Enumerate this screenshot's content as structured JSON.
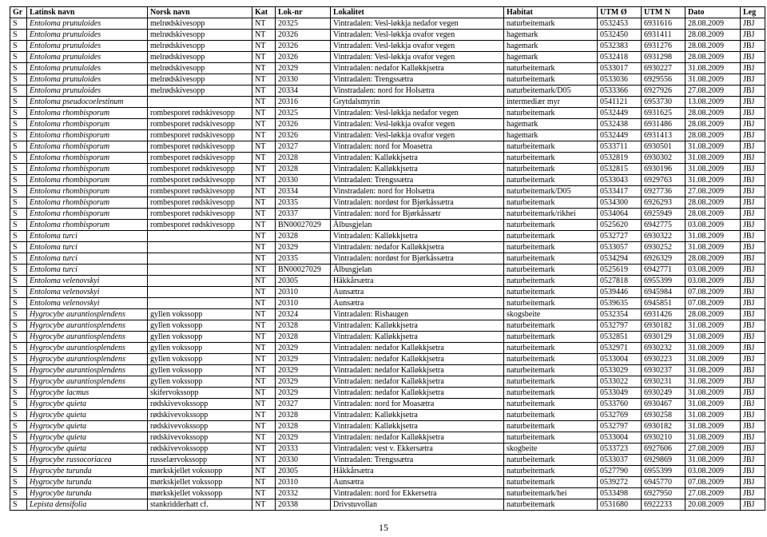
{
  "page_number": "15",
  "columns": [
    {
      "key": "gr",
      "label": "Gr",
      "class": "col-gr"
    },
    {
      "key": "lat",
      "label": "Latinsk navn",
      "class": "col-lat"
    },
    {
      "key": "nor",
      "label": "Norsk navn",
      "class": "col-nor"
    },
    {
      "key": "kat",
      "label": "Kat",
      "class": "col-kat"
    },
    {
      "key": "lok",
      "label": "Lok-nr",
      "class": "col-lok"
    },
    {
      "key": "loka",
      "label": "Lokalitet",
      "class": "col-loka"
    },
    {
      "key": "hab",
      "label": "Habitat",
      "class": "col-hab"
    },
    {
      "key": "utmo",
      "label": "UTM Ø",
      "class": "col-utmo"
    },
    {
      "key": "utmn",
      "label": "UTM N",
      "class": "col-utmn"
    },
    {
      "key": "dato",
      "label": "Dato",
      "class": "col-dato"
    },
    {
      "key": "leg",
      "label": "Leg",
      "class": "col-leg"
    }
  ],
  "rows": [
    {
      "gr": "S",
      "lat": "Entoloma prunuloides",
      "nor": "melrødskivesopp",
      "kat": "NT",
      "lok": "20325",
      "loka": "Vintradalen: Vesl-løkkja nedafor vegen",
      "hab": "naturbeitemark",
      "utmo": "0532453",
      "utmn": "6931616",
      "dato": "28.08.2009",
      "leg": "JBJ"
    },
    {
      "gr": "S",
      "lat": "Entoloma prunuloides",
      "nor": "melrødskivesopp",
      "kat": "NT",
      "lok": "20326",
      "loka": "Vintradalen: Vesl-løkkja ovafor vegen",
      "hab": "hagemark",
      "utmo": "0532450",
      "utmn": "6931411",
      "dato": "28.08.2009",
      "leg": "JBJ"
    },
    {
      "gr": "S",
      "lat": "Entoloma prunuloides",
      "nor": "melrødskivesopp",
      "kat": "NT",
      "lok": "20326",
      "loka": "Vintradalen: Vesl-løkkja ovafor vegen",
      "hab": "hagemark",
      "utmo": "0532383",
      "utmn": "6931276",
      "dato": "28.08.2009",
      "leg": "JBJ"
    },
    {
      "gr": "S",
      "lat": "Entoloma prunuloides",
      "nor": "melrødskivesopp",
      "kat": "NT",
      "lok": "20326",
      "loka": "Vintradalen: Vesl-løkkja ovafor vegen",
      "hab": "hagemark",
      "utmo": "0532418",
      "utmn": "6931298",
      "dato": "28.08.2009",
      "leg": "JBJ"
    },
    {
      "gr": "S",
      "lat": "Entoloma prunuloides",
      "nor": "melrødskivesopp",
      "kat": "NT",
      "lok": "20329",
      "loka": "Vintradalen: nedafor Kalløkkjsetra",
      "hab": "naturbeitemark",
      "utmo": "0533017",
      "utmn": "6930227",
      "dato": "31.08.2009",
      "leg": "JBJ"
    },
    {
      "gr": "S",
      "lat": "Entoloma prunuloides",
      "nor": "melrødskivesopp",
      "kat": "NT",
      "lok": "20330",
      "loka": "Vintradalen: Trengssætra",
      "hab": "naturbeitemark",
      "utmo": "0533036",
      "utmn": "6929556",
      "dato": "31.08.2009",
      "leg": "JBJ"
    },
    {
      "gr": "S",
      "lat": "Entoloma prunuloides",
      "nor": "melrødskivesopp",
      "kat": "NT",
      "lok": "20334",
      "loka": "Vinstradalen: nord for Holsætra",
      "hab": "naturbeitemark/D05",
      "utmo": "0533366",
      "utmn": "6927926",
      "dato": "27.08.2009",
      "leg": "JBJ"
    },
    {
      "gr": "S",
      "lat": "Entoloma pseudocoelestinum",
      "nor": "",
      "kat": "NT",
      "lok": "20316",
      "loka": "Grytdalsmyrin",
      "hab": "intermediær myr",
      "utmo": "0541121",
      "utmn": "6953730",
      "dato": "13.08.2009",
      "leg": "JBJ"
    },
    {
      "gr": "S",
      "lat": "Entoloma rhombisporum",
      "nor": "rombesporet rødskivesopp",
      "kat": "NT",
      "lok": "20325",
      "loka": "Vintradalen: Vesl-løkkja nedafor vegen",
      "hab": "naturbeitemark",
      "utmo": "0532449",
      "utmn": "6931625",
      "dato": "28.08.2009",
      "leg": "JBJ"
    },
    {
      "gr": "S",
      "lat": "Entoloma rhombisporum",
      "nor": "rombesporet rødskivesopp",
      "kat": "NT",
      "lok": "20326",
      "loka": "Vintradalen: Vesl-løkkja ovafor vegen",
      "hab": "hagemark",
      "utmo": "0532438",
      "utmn": "6931486",
      "dato": "28.08.2009",
      "leg": "JBJ"
    },
    {
      "gr": "S",
      "lat": "Entoloma rhombisporum",
      "nor": "rombesporet rødskivesopp",
      "kat": "NT",
      "lok": "20326",
      "loka": "Vintradalen: Vesl-løkkja ovafor vegen",
      "hab": "hagemark",
      "utmo": "0532449",
      "utmn": "6931413",
      "dato": "28.08.2009",
      "leg": "JBJ"
    },
    {
      "gr": "S",
      "lat": "Entoloma rhombisporum",
      "nor": "rombesporet rødskivesopp",
      "kat": "NT",
      "lok": "20327",
      "loka": "Vintradalen: nord for Moasetra",
      "hab": "naturbeitemark",
      "utmo": "0533711",
      "utmn": "6930501",
      "dato": "31.08.2009",
      "leg": "JBJ"
    },
    {
      "gr": "S",
      "lat": "Entoloma rhombisporum",
      "nor": "rombesporet rødskivesopp",
      "kat": "NT",
      "lok": "20328",
      "loka": "Vintradalen: Kalløkkjsetra",
      "hab": "naturbeitemark",
      "utmo": "0532819",
      "utmn": "6930302",
      "dato": "31.08.2009",
      "leg": "JBJ"
    },
    {
      "gr": "S",
      "lat": "Entoloma rhombisporum",
      "nor": "rombesporet rødskivesopp",
      "kat": "NT",
      "lok": "20328",
      "loka": "Vintradalen: Kalløkkjsetra",
      "hab": "naturbeitemark",
      "utmo": "0532815",
      "utmn": "6930196",
      "dato": "31.08.2009",
      "leg": "JBJ"
    },
    {
      "gr": "S",
      "lat": "Entoloma rhombisporum",
      "nor": "rombesporet rødskivesopp",
      "kat": "NT",
      "lok": "20330",
      "loka": "Vintradalen: Trengssætra",
      "hab": "naturbeitemark",
      "utmo": "0533043",
      "utmn": "6929763",
      "dato": "31.08.2009",
      "leg": "JBJ"
    },
    {
      "gr": "S",
      "lat": "Entoloma rhombisporum",
      "nor": "rombesporet rødskivesopp",
      "kat": "NT",
      "lok": "20334",
      "loka": "Vinstradalen: nord for Holsætra",
      "hab": "naturbeitemark/D05",
      "utmo": "0533417",
      "utmn": "6927736",
      "dato": "27.08.2009",
      "leg": "JBJ"
    },
    {
      "gr": "S",
      "lat": "Entoloma rhombisporum",
      "nor": "rombesporet rødskivesopp",
      "kat": "NT",
      "lok": "20335",
      "loka": "Vintradalen: nordøst for Bjørkåssætra",
      "hab": "naturbeitemark",
      "utmo": "0534300",
      "utmn": "6926293",
      "dato": "28.08.2009",
      "leg": "JBJ"
    },
    {
      "gr": "S",
      "lat": "Entoloma rhombisporum",
      "nor": "rombesporet rødskivesopp",
      "kat": "NT",
      "lok": "20337",
      "loka": "Vintradalen: nord for Bjørkåssætr",
      "hab": "naturbeitemark/rikhei",
      "utmo": "0534064",
      "utmn": "6925949",
      "dato": "28.08.2009",
      "leg": "JBJ"
    },
    {
      "gr": "S",
      "lat": "Entoloma rhombisporum",
      "nor": "rombesporet rødskivesopp",
      "kat": "NT",
      "lok": "BN00027029",
      "loka": "Ålbusgjelan",
      "hab": "naturbeitemark",
      "utmo": "0525620",
      "utmn": "6942775",
      "dato": "03.08.2009",
      "leg": "JBJ"
    },
    {
      "gr": "S",
      "lat": "Entoloma turci",
      "nor": "",
      "kat": "NT",
      "lok": "20328",
      "loka": "Vintradalen: Kalløkkjsetra",
      "hab": "naturbeitemark",
      "utmo": "0532727",
      "utmn": "6930322",
      "dato": "31.08.2009",
      "leg": "JBJ"
    },
    {
      "gr": "S",
      "lat": "Entoloma turci",
      "nor": "",
      "kat": "NT",
      "lok": "20329",
      "loka": "Vintradalen: nedafor Kalløkkjsetra",
      "hab": "naturbeitemark",
      "utmo": "0533057",
      "utmn": "6930252",
      "dato": "31.08.2009",
      "leg": "JBJ"
    },
    {
      "gr": "S",
      "lat": "Entoloma turci",
      "nor": "",
      "kat": "NT",
      "lok": "20335",
      "loka": "Vintradalen: nordøst for Bjørkåssætra",
      "hab": "naturbeitemark",
      "utmo": "0534294",
      "utmn": "6926329",
      "dato": "28.08.2009",
      "leg": "JBJ"
    },
    {
      "gr": "S",
      "lat": "Entoloma turci",
      "nor": "",
      "kat": "NT",
      "lok": "BN00027029",
      "loka": "Ålbusgjelan",
      "hab": "naturbeitemark",
      "utmo": "0525619",
      "utmn": "6942771",
      "dato": "03.08.2009",
      "leg": "JBJ"
    },
    {
      "gr": "S",
      "lat": "Entoloma velenovskyi",
      "nor": "",
      "kat": "NT",
      "lok": "20305",
      "loka": "Håkkårsætra",
      "hab": "naturbeitemark",
      "utmo": "0527818",
      "utmn": "6955399",
      "dato": "03.08.2009",
      "leg": "JBJ"
    },
    {
      "gr": "S",
      "lat": "Entoloma velenovskyi",
      "nor": "",
      "kat": "NT",
      "lok": "20310",
      "loka": "Aunsætra",
      "hab": "naturbeitemark",
      "utmo": "0539446",
      "utmn": "6945984",
      "dato": "07.08.2009",
      "leg": "JBJ"
    },
    {
      "gr": "S",
      "lat": "Entoloma velenovskyi",
      "nor": "",
      "kat": "NT",
      "lok": "20310",
      "loka": "Aunsætra",
      "hab": "naturbeitemark",
      "utmo": "0539635",
      "utmn": "6945851",
      "dato": "07.08.2009",
      "leg": "JBJ"
    },
    {
      "gr": "S",
      "lat": "Hygrocybe aurantiosplendens",
      "nor": "gyllen vokssopp",
      "kat": "NT",
      "lok": "20324",
      "loka": "Vintradalen: Rishaugen",
      "hab": "skogsbeite",
      "utmo": "0532354",
      "utmn": "6931426",
      "dato": "28.08.2009",
      "leg": "JBJ"
    },
    {
      "gr": "S",
      "lat": "Hygrocybe aurantiosplendens",
      "nor": "gyllen vokssopp",
      "kat": "NT",
      "lok": "20328",
      "loka": "Vintradalen: Kalløkkjsetra",
      "hab": "naturbeitemark",
      "utmo": "0532797",
      "utmn": "6930182",
      "dato": "31.08.2009",
      "leg": "JBJ"
    },
    {
      "gr": "S",
      "lat": "Hygrocybe aurantiosplendens",
      "nor": "gyllen vokssopp",
      "kat": "NT",
      "lok": "20328",
      "loka": "Vintradalen: Kalløkkjsetra",
      "hab": "naturbeitemark",
      "utmo": "0532851",
      "utmn": "6930129",
      "dato": "31.08.2009",
      "leg": "JBJ"
    },
    {
      "gr": "S",
      "lat": "Hygrocybe aurantiosplendens",
      "nor": "gyllen vokssopp",
      "kat": "NT",
      "lok": "20329",
      "loka": "Vintradalen: nedafor Kalløkkjsetra",
      "hab": "naturbeitemark",
      "utmo": "0532971",
      "utmn": "6930232",
      "dato": "31.08.2009",
      "leg": "JBJ"
    },
    {
      "gr": "S",
      "lat": "Hygrocybe aurantiosplendens",
      "nor": "gyllen vokssopp",
      "kat": "NT",
      "lok": "20329",
      "loka": "Vintradalen: nedafor Kalløkkjsetra",
      "hab": "naturbeitemark",
      "utmo": "0533004",
      "utmn": "6930223",
      "dato": "31.08.2009",
      "leg": "JBJ"
    },
    {
      "gr": "S",
      "lat": "Hygrocybe aurantiosplendens",
      "nor": "gyllen vokssopp",
      "kat": "NT",
      "lok": "20329",
      "loka": "Vintradalen: nedafor Kalløkkjsetra",
      "hab": "naturbeitemark",
      "utmo": "0533029",
      "utmn": "6930237",
      "dato": "31.08.2009",
      "leg": "JBJ"
    },
    {
      "gr": "S",
      "lat": "Hygrocybe aurantiosplendens",
      "nor": "gyllen vokssopp",
      "kat": "NT",
      "lok": "20329",
      "loka": "Vintradalen: nedafor Kalløkkjsetra",
      "hab": "naturbeitemark",
      "utmo": "0533022",
      "utmn": "6930231",
      "dato": "31.08.2009",
      "leg": "JBJ"
    },
    {
      "gr": "S",
      "lat": "Hygrocybe lacmus",
      "nor": "skifervokssopp",
      "kat": "NT",
      "lok": "20329",
      "loka": "Vintradalen: nedafor Kalløkkjsetra",
      "hab": "naturbeitemark",
      "utmo": "0533049",
      "utmn": "6930249",
      "dato": "31.08.2009",
      "leg": "JBJ"
    },
    {
      "gr": "S",
      "lat": "Hygrocybe quieta",
      "nor": "rødskivevokssopp",
      "kat": "NT",
      "lok": "20327",
      "loka": "Vintradalen: nord for Moasætra",
      "hab": "naturbeitemark",
      "utmo": "0533760",
      "utmn": "6930467",
      "dato": "31.08.2009",
      "leg": "JBJ"
    },
    {
      "gr": "S",
      "lat": "Hygrocybe quieta",
      "nor": "rødskivevokssopp",
      "kat": "NT",
      "lok": "20328",
      "loka": "Vintradalen: Kalløkkjsetra",
      "hab": "naturbeitemark",
      "utmo": "0532769",
      "utmn": "6930258",
      "dato": "31.08.2009",
      "leg": "JBJ"
    },
    {
      "gr": "S",
      "lat": "Hygrocybe quieta",
      "nor": "rødskivevokssopp",
      "kat": "NT",
      "lok": "20328",
      "loka": "Vintradalen: Kalløkkjsetra",
      "hab": "naturbeitemark",
      "utmo": "0532797",
      "utmn": "6930182",
      "dato": "31.08.2009",
      "leg": "JBJ"
    },
    {
      "gr": "S",
      "lat": "Hygrocybe quieta",
      "nor": "rødskivevokssopp",
      "kat": "NT",
      "lok": "20329",
      "loka": "Vintradalen: nedafor Kalløkkjsetra",
      "hab": "naturbeitemark",
      "utmo": "0533004",
      "utmn": "6930210",
      "dato": "31.08.2009",
      "leg": "JBJ"
    },
    {
      "gr": "S",
      "lat": "Hygrocybe quieta",
      "nor": "rødskivevokssopp",
      "kat": "NT",
      "lok": "20333",
      "loka": "Vintradalen: vest v. Ekkersætra",
      "hab": "skogbeite",
      "utmo": "0533723",
      "utmn": "6927606",
      "dato": "27.08.2009",
      "leg": "JBJ"
    },
    {
      "gr": "S",
      "lat": "Hygrocybe russocoriacea",
      "nor": "russelærvokssopp",
      "kat": "NT",
      "lok": "20330",
      "loka": "Vintradalen: Trengssætra",
      "hab": "naturbeitemark",
      "utmo": "0533037",
      "utmn": "6929869",
      "dato": "31.08.2009",
      "leg": "JBJ"
    },
    {
      "gr": "S",
      "lat": "Hygrocybe turunda",
      "nor": "mørkskjellet vokssopp",
      "kat": "NT",
      "lok": "20305",
      "loka": "Håkkårsætra",
      "hab": "naturbeitemark",
      "utmo": "0527790",
      "utmn": "6955399",
      "dato": "03.08.2009",
      "leg": "JBJ"
    },
    {
      "gr": "S",
      "lat": "Hygrocybe turunda",
      "nor": "mørkskjellet vokssopp",
      "kat": "NT",
      "lok": "20310",
      "loka": "Aunsætra",
      "hab": "naturbeitemark",
      "utmo": "0539272",
      "utmn": "6945770",
      "dato": "07.08.2009",
      "leg": "JBJ"
    },
    {
      "gr": "S",
      "lat": "Hygrocybe turunda",
      "nor": "mørkskjellet vokssopp",
      "kat": "NT",
      "lok": "20332",
      "loka": "Vintradalen: nord for Ekkersetra",
      "hab": "naturbeitemark/hei",
      "utmo": "0533498",
      "utmn": "6927950",
      "dato": "27.08.2009",
      "leg": "JBJ"
    },
    {
      "gr": "S",
      "lat": "Lepista densifolia",
      "nor": "stankridderhatt cf.",
      "kat": "NT",
      "lok": "20338",
      "loka": "Drivstuvollan",
      "hab": "naturbeitemark",
      "utmo": "0531680",
      "utmn": "6922233",
      "dato": "20.08.2009",
      "leg": "JBJ"
    }
  ]
}
